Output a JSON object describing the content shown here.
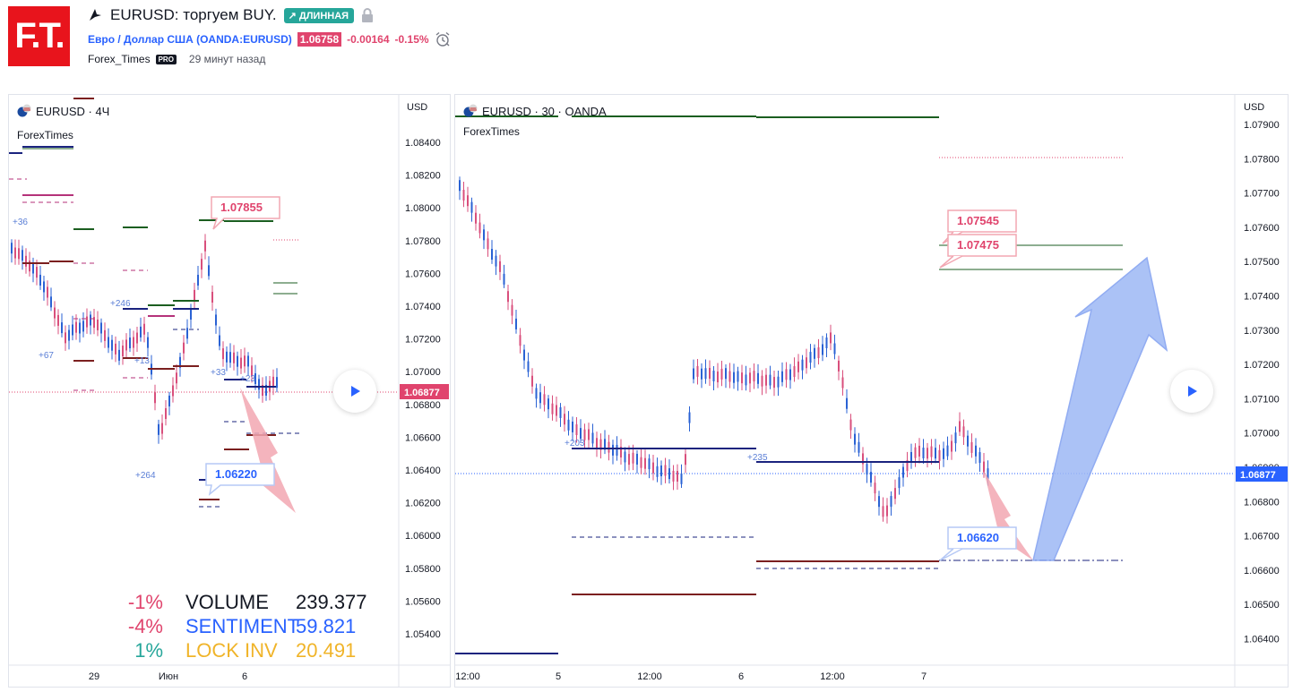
{
  "header": {
    "logo_text": "F.T.",
    "title": "EURUSD: торгуем BUY.",
    "badge": "↗ ДЛИННАЯ",
    "symbol_full": "Евро / Доллар США (OANDA:EURUSD)",
    "price": "1.06758",
    "change": "-0.00164",
    "change_pct": "-0.15%",
    "author": "Forex_Times",
    "author_badge": "PRO",
    "time_ago": "29 минут назад",
    "icons": [
      "idea-icon",
      "lock-icon",
      "alarm-clock-icon"
    ]
  },
  "colors": {
    "up": "#2962ff",
    "down": "#e0446d",
    "accent_green": "#26a69a",
    "navy": "#1a237e",
    "maroon": "#7b1f1f",
    "dark_green": "#1b5e20",
    "purple": "#b5327a",
    "arrow_blue": "#9db8f5",
    "arrow_red": "#f2a7b2"
  },
  "left_chart": {
    "legend_symbol": "EURUSD · 4Ч",
    "legend_indicator": "ForexTimes",
    "currency": "USD",
    "y_ticks": [
      "1.08400",
      "1.08200",
      "1.08000",
      "1.07800",
      "1.07600",
      "1.07400",
      "1.07200",
      "1.07000",
      "1.06800",
      "1.06600",
      "1.06400",
      "1.06200",
      "1.06000",
      "1.05800",
      "1.05600",
      "1.05400"
    ],
    "last_price": "1.06877",
    "x_labels": [
      "29",
      "Июн",
      "6"
    ],
    "callout_upper": "1.07855",
    "callout_lower": "1.06220",
    "small_labels": [
      "+36",
      "+246",
      "+67",
      "+264",
      "+13",
      "+33",
      "+23"
    ],
    "stats": [
      {
        "pct": "-1%",
        "label": "VOLUME",
        "value": "239.377",
        "color": "#131722",
        "pct_color": "#e0446d"
      },
      {
        "pct": "-4%",
        "label": "SENTIMENT",
        "value": "59.821",
        "color": "#2962ff",
        "pct_color": "#e0446d"
      },
      {
        "pct": "1%",
        "label": "LOCK INV",
        "value": "20.491",
        "color": "#f0b429",
        "pct_color": "#26a69a"
      }
    ]
  },
  "right_chart": {
    "legend_symbol": "EURUSD · 30 · OANDA",
    "legend_indicator": "ForexTimes",
    "currency": "USD",
    "y_ticks": [
      "1.07900",
      "1.07800",
      "1.07700",
      "1.07600",
      "1.07500",
      "1.07400",
      "1.07300",
      "1.07200",
      "1.07100",
      "1.07000",
      "1.06900",
      "1.06800",
      "1.06700",
      "1.06600",
      "1.06500",
      "1.06400"
    ],
    "last_price": "1.06877",
    "x_labels": [
      "12:00",
      "5",
      "12:00",
      "6",
      "12:00",
      "7"
    ],
    "callout_1": "1.07545",
    "callout_2": "1.07475",
    "callout_low": "1.06620",
    "small_labels": [
      "+235",
      "+203"
    ]
  }
}
